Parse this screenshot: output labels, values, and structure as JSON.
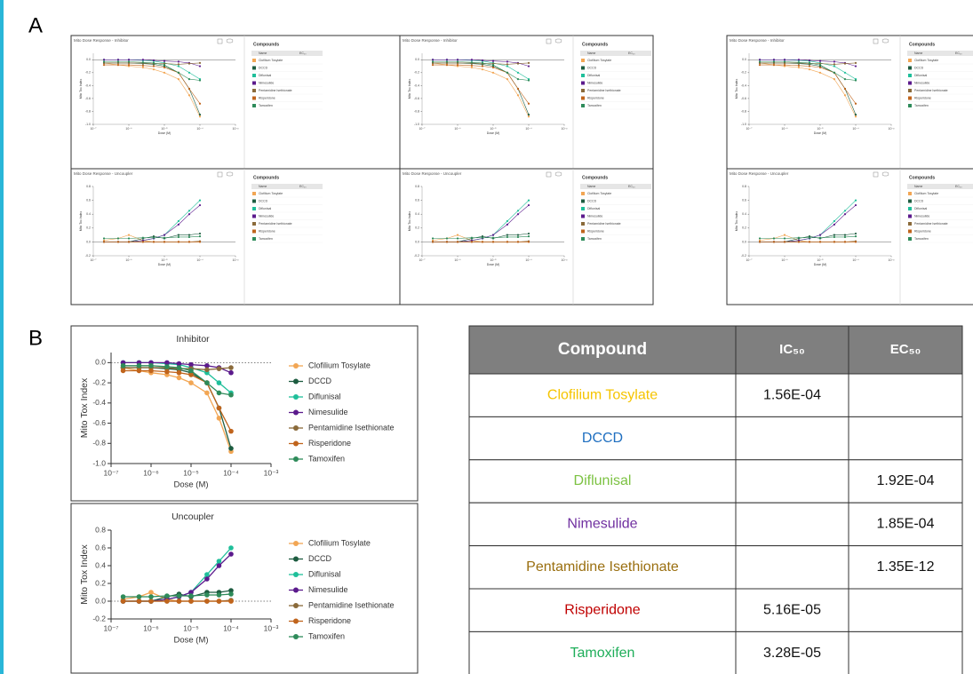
{
  "panel_labels": [
    "A",
    "B"
  ],
  "screens": {
    "titles": [
      "Mito Dose Response - Inhibitor",
      "Mito Dose Response - Uncoupler"
    ],
    "list_title": "Compounds",
    "list_headers": [
      "Name",
      "EC₅₀"
    ]
  },
  "chart_data": [
    {
      "type": "line",
      "title": "Inhibitor",
      "x_label": "Dose (M)",
      "y_label": "Mito Tox Index",
      "xscale": "log",
      "x": [
        2e-07,
        5e-07,
        1e-06,
        2.5e-06,
        5e-06,
        1e-05,
        2.5e-05,
        5e-05,
        0.0001
      ],
      "xlim": [
        1e-07,
        0.001
      ],
      "xticks": [
        {
          "value": 1e-07,
          "label": "10⁻⁷"
        },
        {
          "value": 1e-06,
          "label": "10⁻⁶"
        },
        {
          "value": 1e-05,
          "label": "10⁻⁵"
        },
        {
          "value": 0.0001,
          "label": "10⁻⁴"
        },
        {
          "value": 0.001,
          "label": "10⁻³"
        }
      ],
      "ylim": [
        -1,
        0.1
      ],
      "yticks": [
        {
          "value": -1,
          "label": "-1.0"
        },
        -0.8,
        -0.6,
        -0.4,
        -0.2,
        {
          "value": 0,
          "label": "0.0"
        }
      ],
      "legend": "right",
      "series": [
        {
          "name": "Clofilium Tosylate",
          "color": "#f2a654",
          "values": [
            -0.05,
            -0.08,
            -0.1,
            -0.12,
            -0.15,
            -0.2,
            -0.3,
            -0.55,
            -0.88
          ]
        },
        {
          "name": "DCCD",
          "color": "#1d5c40",
          "values": [
            -0.05,
            -0.05,
            -0.05,
            -0.06,
            -0.07,
            -0.1,
            -0.2,
            -0.45,
            -0.85
          ]
        },
        {
          "name": "Diflunisal",
          "color": "#1fbf9a",
          "values": [
            0,
            0,
            0,
            -0.01,
            -0.02,
            -0.05,
            -0.1,
            -0.2,
            -0.3
          ]
        },
        {
          "name": "Nimesulide",
          "color": "#5b1a8c",
          "values": [
            0,
            0,
            0,
            0,
            -0.01,
            -0.02,
            -0.03,
            -0.05,
            -0.1
          ]
        },
        {
          "name": "Pentamidine Isethionate",
          "color": "#8a6a3a",
          "values": [
            -0.05,
            -0.05,
            -0.05,
            -0.05,
            -0.06,
            -0.06,
            -0.07,
            -0.06,
            -0.05
          ]
        },
        {
          "name": "Risperidone",
          "color": "#c0641c",
          "values": [
            -0.08,
            -0.08,
            -0.08,
            -0.09,
            -0.1,
            -0.12,
            -0.2,
            -0.45,
            -0.68
          ]
        },
        {
          "name": "Tamoxifen",
          "color": "#2e8b5a",
          "values": [
            -0.03,
            -0.03,
            -0.03,
            -0.04,
            -0.05,
            -0.08,
            -0.2,
            -0.3,
            -0.32
          ]
        }
      ]
    },
    {
      "type": "line",
      "title": "Uncoupler",
      "x_label": "Dose (M)",
      "y_label": "Mito Tox Index",
      "xscale": "log",
      "x": [
        2e-07,
        5e-07,
        1e-06,
        2.5e-06,
        5e-06,
        1e-05,
        2.5e-05,
        5e-05,
        0.0001
      ],
      "xlim": [
        1e-07,
        0.001
      ],
      "xticks": [
        {
          "value": 1e-07,
          "label": "10⁻⁷"
        },
        {
          "value": 1e-06,
          "label": "10⁻⁶"
        },
        {
          "value": 1e-05,
          "label": "10⁻⁵"
        },
        {
          "value": 0.0001,
          "label": "10⁻⁴"
        },
        {
          "value": 0.001,
          "label": "10⁻³"
        }
      ],
      "ylim": [
        -0.2,
        0.8
      ],
      "yticks": [
        -0.2,
        {
          "value": 0,
          "label": "0.0"
        },
        0.2,
        0.4,
        0.6,
        0.8
      ],
      "legend": "right",
      "series": [
        {
          "name": "Clofilium Tosylate",
          "color": "#f2a654",
          "values": [
            0.02,
            0.05,
            0.1,
            0.02,
            0,
            0,
            0,
            0,
            0
          ]
        },
        {
          "name": "DCCD",
          "color": "#1d5c40",
          "values": [
            0,
            0,
            0,
            0.05,
            0.08,
            0.05,
            0.1,
            0.1,
            0.12
          ]
        },
        {
          "name": "Diflunisal",
          "color": "#1fbf9a",
          "values": [
            0,
            0,
            0,
            0.02,
            0.05,
            0.1,
            0.3,
            0.45,
            0.6
          ]
        },
        {
          "name": "Nimesulide",
          "color": "#5b1a8c",
          "values": [
            0,
            0,
            0,
            0.02,
            0.05,
            0.1,
            0.25,
            0.4,
            0.53
          ]
        },
        {
          "name": "Pentamidine Isethionate",
          "color": "#8a6a3a",
          "values": [
            0,
            0,
            0,
            0,
            0,
            0,
            0,
            0,
            0.01
          ]
        },
        {
          "name": "Risperidone",
          "color": "#c0641c",
          "values": [
            0,
            0,
            0,
            0,
            0,
            0,
            0,
            0,
            0
          ]
        },
        {
          "name": "Tamoxifen",
          "color": "#2e8b5a",
          "values": [
            0.05,
            0.05,
            0.05,
            0.06,
            0.06,
            0.06,
            0.07,
            0.07,
            0.08
          ]
        }
      ]
    }
  ],
  "table": {
    "headers": [
      "Compound",
      "IC₅₀",
      "EC₅₀"
    ],
    "rows": [
      {
        "compound": "Clofilium Tosylate",
        "color": "#f5c400",
        "ic50": "1.56E-04",
        "ec50": null
      },
      {
        "compound": "DCCD",
        "color": "#1f6fc0",
        "ic50": null,
        "ec50": null
      },
      {
        "compound": "Diflunisal",
        "color": "#7cc242",
        "ic50": null,
        "ec50": "1.92E-04"
      },
      {
        "compound": "Nimesulide",
        "color": "#7030a0",
        "ic50": null,
        "ec50": "1.85E-04"
      },
      {
        "compound": "Pentamidine Isethionate",
        "color": "#9a6f10",
        "ic50": null,
        "ec50": "1.35E-12"
      },
      {
        "compound": "Risperidone",
        "color": "#c00000",
        "ic50": "5.16E-05",
        "ec50": null
      },
      {
        "compound": "Tamoxifen",
        "color": "#1fae5a",
        "ic50": "3.28E-05",
        "ec50": null
      }
    ]
  }
}
